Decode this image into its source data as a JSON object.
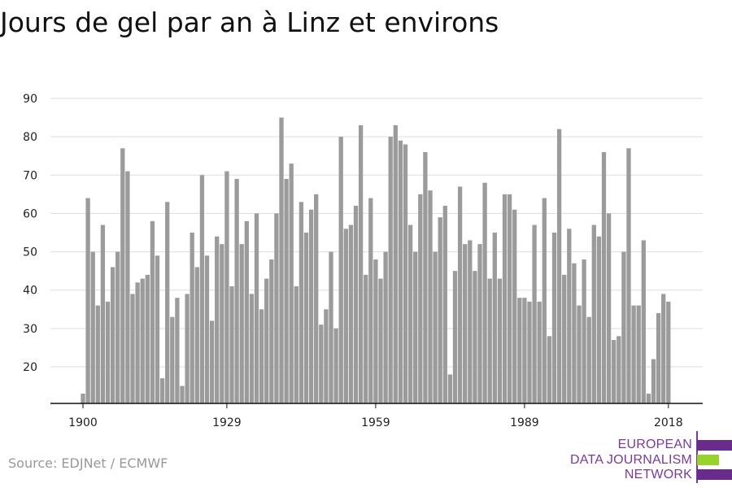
{
  "title": "Jours de gel par an à Linz et environs",
  "source": "Source: EDJNet / ECMWF",
  "logo": {
    "line1": "EUROPEAN",
    "line2": "DATA JOURNALISM",
    "line3": "NETWORK",
    "colors": {
      "purple": "#6a2c8c",
      "green": "#97d32c"
    }
  },
  "chart_data": {
    "type": "bar",
    "title": "Jours de gel par an à Linz et environs",
    "xlabel": "",
    "ylabel": "",
    "x_ticks": [
      1900,
      1929,
      1959,
      1989,
      2018
    ],
    "y_ticks": [
      20,
      30,
      40,
      50,
      60,
      70,
      80,
      90
    ],
    "ylim": [
      12,
      90
    ],
    "grid": true,
    "bar_color": "#9b9b9b",
    "x": [
      1900,
      1901,
      1902,
      1903,
      1904,
      1905,
      1906,
      1907,
      1908,
      1909,
      1910,
      1911,
      1912,
      1913,
      1914,
      1915,
      1916,
      1917,
      1918,
      1919,
      1920,
      1921,
      1922,
      1923,
      1924,
      1925,
      1926,
      1927,
      1928,
      1929,
      1930,
      1931,
      1932,
      1933,
      1934,
      1935,
      1936,
      1937,
      1938,
      1939,
      1940,
      1941,
      1942,
      1943,
      1944,
      1945,
      1946,
      1947,
      1948,
      1949,
      1950,
      1951,
      1952,
      1953,
      1954,
      1955,
      1956,
      1957,
      1958,
      1959,
      1960,
      1961,
      1962,
      1963,
      1964,
      1965,
      1966,
      1967,
      1968,
      1969,
      1970,
      1971,
      1972,
      1973,
      1974,
      1975,
      1976,
      1977,
      1978,
      1979,
      1980,
      1981,
      1982,
      1983,
      1984,
      1985,
      1986,
      1987,
      1988,
      1989,
      1990,
      1991,
      1992,
      1993,
      1994,
      1995,
      1996,
      1997,
      1998,
      1999,
      2000,
      2001,
      2002,
      2003,
      2004,
      2005,
      2006,
      2007,
      2008,
      2009,
      2010,
      2011,
      2012,
      2013,
      2014,
      2015,
      2016,
      2017,
      2018
    ],
    "values": [
      13,
      64,
      50,
      36,
      57,
      37,
      46,
      50,
      77,
      71,
      39,
      42,
      43,
      44,
      58,
      49,
      17,
      63,
      33,
      38,
      15,
      39,
      55,
      46,
      70,
      49,
      32,
      54,
      52,
      71,
      41,
      69,
      52,
      58,
      39,
      60,
      35,
      43,
      48,
      60,
      85,
      69,
      73,
      41,
      63,
      55,
      61,
      65,
      31,
      35,
      50,
      30,
      80,
      56,
      57,
      62,
      83,
      44,
      64,
      48,
      43,
      50,
      80,
      83,
      79,
      78,
      57,
      50,
      65,
      76,
      66,
      50,
      59,
      62,
      18,
      45,
      67,
      52,
      53,
      45,
      52,
      68,
      43,
      55,
      43,
      65,
      65,
      61,
      38,
      38,
      37,
      57,
      37,
      64,
      28,
      55,
      82,
      44,
      56,
      47,
      36,
      48,
      33,
      57,
      54,
      76,
      60,
      27,
      28,
      50,
      77,
      36,
      36,
      53,
      13,
      22,
      34,
      39,
      37
    ]
  }
}
